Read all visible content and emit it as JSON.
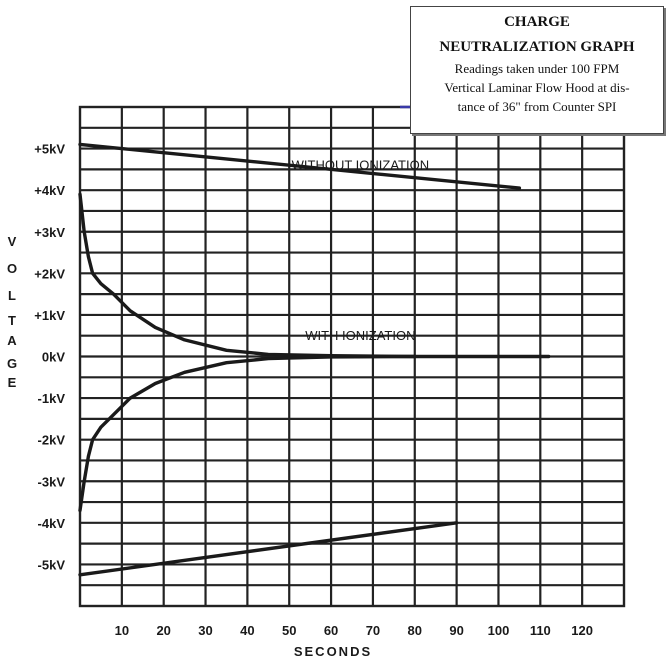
{
  "chart_data": {
    "type": "line",
    "title": "CHARGE",
    "title_line2": "NEUTRALIZATION GRAPH",
    "subtitle": "Readings taken under 100 FPM Vertical Laminar Flow Hood at distance of 36\" from Counter SPI",
    "subtitle_lines": [
      "Readings taken under 100 FPM",
      "Vertical Laminar Flow Hood at dis-",
      "tance of 36\" from Counter SPI"
    ],
    "xlabel": "SECONDS",
    "ylabel": "VOLTAGE",
    "ylabel_letters": [
      "V",
      "O",
      "L",
      "T",
      "A",
      "G",
      "E"
    ],
    "x_ticks": [
      10,
      20,
      30,
      40,
      50,
      60,
      70,
      80,
      90,
      100,
      110,
      120
    ],
    "x_tick_labels": [
      "10",
      "20",
      "30",
      "40",
      "50",
      "60",
      "70",
      "80",
      "90",
      "100",
      "110",
      "120"
    ],
    "y_ticks": [
      5,
      4,
      3,
      2,
      1,
      0,
      -1,
      -2,
      -3,
      -4,
      -5
    ],
    "y_tick_labels": [
      "+5kV",
      "+4kV",
      "+3kV",
      "+2kV",
      "+1kV",
      "0kV",
      "-1kV",
      "-2kV",
      "-3kV",
      "-4kV",
      "-5kV"
    ],
    "xlim": [
      0,
      130
    ],
    "ylim": [
      -6,
      6
    ],
    "grid": true,
    "series": [
      {
        "label": "WITHOUT IONIZATION",
        "points": [
          [
            0,
            5.1
          ],
          [
            105,
            4.05
          ]
        ]
      },
      {
        "label": "WITHOUT IONIZATION",
        "points": [
          [
            0,
            -5.25
          ],
          [
            90,
            -4.0
          ]
        ]
      },
      {
        "label": "WITH IONIZATION",
        "points": [
          [
            0,
            3.9
          ],
          [
            1,
            3.0
          ],
          [
            2,
            2.4
          ],
          [
            3,
            2.0
          ],
          [
            5,
            1.75
          ],
          [
            8,
            1.5
          ],
          [
            12,
            1.1
          ],
          [
            18,
            0.7
          ],
          [
            25,
            0.4
          ],
          [
            35,
            0.15
          ],
          [
            45,
            0.05
          ],
          [
            60,
            0.02
          ],
          [
            80,
            0.0
          ],
          [
            112,
            0.0
          ]
        ]
      },
      {
        "label": "WITH IONIZATION",
        "points": [
          [
            0,
            -3.7
          ],
          [
            1,
            -3.0
          ],
          [
            2,
            -2.4
          ],
          [
            3,
            -2.0
          ],
          [
            5,
            -1.7
          ],
          [
            8,
            -1.4
          ],
          [
            12,
            -1.0
          ],
          [
            18,
            -0.65
          ],
          [
            25,
            -0.38
          ],
          [
            35,
            -0.15
          ],
          [
            45,
            -0.05
          ],
          [
            60,
            -0.01
          ],
          [
            80,
            0.0
          ]
        ]
      }
    ],
    "annotations": [
      {
        "text": "WITHOUT IONIZATION",
        "x": 67,
        "y": 4.5
      },
      {
        "text": "WITH IONIZATION",
        "x": 67,
        "y": 0.4
      }
    ]
  }
}
